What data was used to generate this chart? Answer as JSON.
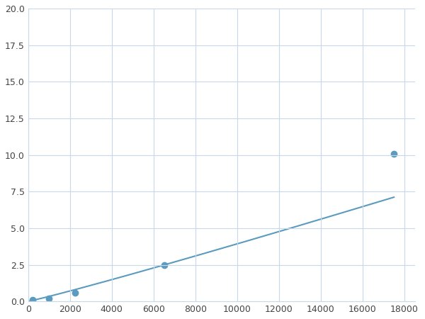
{
  "x_points": [
    200,
    1000,
    2250,
    6500,
    17500
  ],
  "y_points": [
    0.1,
    0.2,
    0.6,
    2.5,
    10.1
  ],
  "line_color": "#5b9bbf",
  "marker_color": "#5b9bbf",
  "marker_size": 6,
  "xlim": [
    0,
    18500
  ],
  "ylim": [
    0,
    20
  ],
  "xticks": [
    0,
    2000,
    4000,
    6000,
    8000,
    10000,
    12000,
    14000,
    16000,
    18000
  ],
  "yticks": [
    0.0,
    2.5,
    5.0,
    7.5,
    10.0,
    12.5,
    15.0,
    17.5,
    20.0
  ],
  "grid_color": "#c8d8e8",
  "background_color": "#ffffff",
  "linewidth": 1.5
}
